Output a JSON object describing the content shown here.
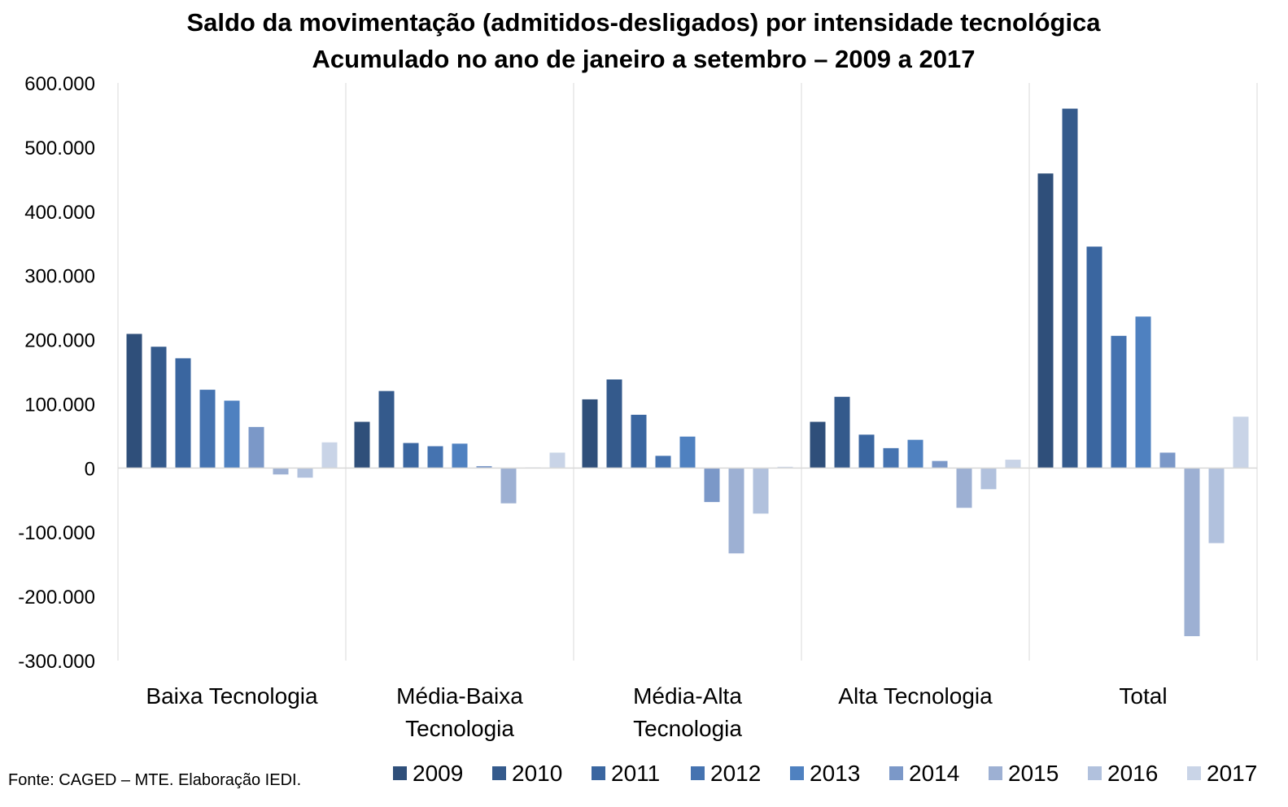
{
  "source_note": "Fonte: CAGED – MTE. Elaboração IEDI.",
  "chart_data": {
    "type": "bar",
    "title": "Saldo da movimentação (admitidos-desligados) por intensidade tecnológica",
    "subtitle": "Acumulado no ano de janeiro a setembro – 2009 a 2017",
    "xlabel": "",
    "ylabel": "",
    "ylim": [
      -300000,
      600000
    ],
    "yticks": [
      600000,
      500000,
      400000,
      300000,
      200000,
      100000,
      0,
      -100000,
      -200000,
      -300000
    ],
    "ytick_labels": [
      "600.000",
      "500.000",
      "400.000",
      "300.000",
      "200.000",
      "100.000",
      "0",
      "-100.000",
      "-200.000",
      "-300.000"
    ],
    "categories": [
      [
        "Baixa Tecnologia"
      ],
      [
        "Média-Baixa",
        "Tecnologia"
      ],
      [
        "Média-Alta",
        "Tecnologia"
      ],
      [
        "Alta Tecnologia"
      ],
      [
        "Total"
      ]
    ],
    "grid": "vertical separators between categories",
    "legend_position": "bottom",
    "series": [
      {
        "name": "2009",
        "color": "#2f4f7a",
        "values": [
          209000,
          72000,
          107000,
          72000,
          459000
        ]
      },
      {
        "name": "2010",
        "color": "#345a8c",
        "values": [
          189000,
          120000,
          138000,
          111000,
          560000
        ]
      },
      {
        "name": "2011",
        "color": "#3a66a0",
        "values": [
          171000,
          39000,
          83000,
          52000,
          345000
        ]
      },
      {
        "name": "2012",
        "color": "#4573b0",
        "values": [
          122000,
          34000,
          19000,
          31000,
          206000
        ]
      },
      {
        "name": "2013",
        "color": "#4f81c0",
        "values": [
          105000,
          38000,
          49000,
          44000,
          236000
        ]
      },
      {
        "name": "2014",
        "color": "#7b98c8",
        "values": [
          64000,
          3000,
          -53000,
          11000,
          24000
        ]
      },
      {
        "name": "2015",
        "color": "#9db0d3",
        "values": [
          -10000,
          -55000,
          -133000,
          -62000,
          -262000
        ]
      },
      {
        "name": "2016",
        "color": "#b1c1dd",
        "values": [
          -15000,
          1000,
          -71000,
          -33000,
          -117000
        ]
      },
      {
        "name": "2017",
        "color": "#c9d4e7",
        "values": [
          40000,
          24000,
          2000,
          13000,
          80000
        ]
      }
    ]
  }
}
